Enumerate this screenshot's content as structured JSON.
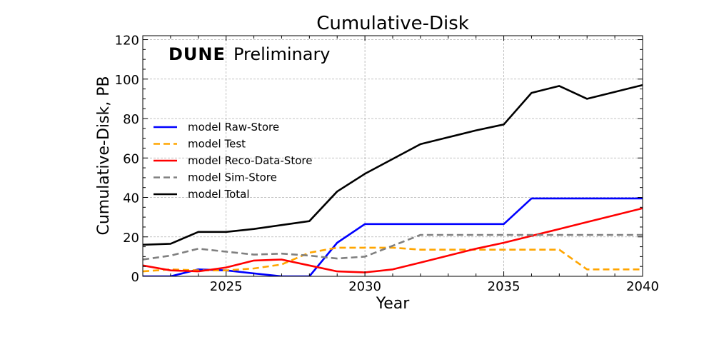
{
  "chart_data": {
    "type": "line",
    "title": "Cumulative-Disk",
    "xlabel": "Year",
    "ylabel": "Cumulative-Disk, PB",
    "annotation_bold": "DUNE",
    "annotation_text": "Preliminary",
    "xlim": [
      2022,
      2040
    ],
    "ylim": [
      0,
      122
    ],
    "xticks": [
      2025,
      2030,
      2035,
      2040
    ],
    "yticks": [
      0,
      20,
      40,
      60,
      80,
      100,
      120
    ],
    "grid": true,
    "legend_position": "left",
    "series": [
      {
        "name": "model Raw-Store",
        "color": "#0000ff",
        "dashed": false,
        "x": [
          2022,
          2023,
          2024,
          2025,
          2026,
          2027,
          2028,
          2029,
          2030,
          2031,
          2032,
          2033,
          2034,
          2035,
          2036,
          2037,
          2038,
          2039,
          2040
        ],
        "values": [
          0,
          0,
          3.5,
          3,
          1.5,
          0,
          0,
          17,
          26.5,
          26.5,
          26.5,
          26.5,
          26.5,
          26.5,
          39.5,
          39.5,
          39.5,
          39.5,
          39.5
        ]
      },
      {
        "name": "model Test",
        "color": "#ffa500",
        "dashed": true,
        "x": [
          2022,
          2023,
          2024,
          2025,
          2026,
          2027,
          2028,
          2029,
          2030,
          2031,
          2032,
          2033,
          2034,
          2035,
          2036,
          2037,
          2038,
          2039,
          2040
        ],
        "values": [
          2.5,
          3.5,
          3,
          3,
          4,
          6,
          12,
          14.5,
          14.5,
          14.5,
          13.5,
          13.5,
          13.5,
          13.5,
          13.5,
          13.5,
          3.5,
          3.5,
          3.5
        ]
      },
      {
        "name": "model Reco-Data-Store",
        "color": "#ff0000",
        "dashed": false,
        "x": [
          2022,
          2023,
          2024,
          2025,
          2026,
          2027,
          2028,
          2029,
          2030,
          2031,
          2032,
          2033,
          2034,
          2035,
          2036,
          2037,
          2038,
          2039,
          2040
        ],
        "values": [
          5.5,
          3,
          2.5,
          4.5,
          8,
          8.5,
          5.5,
          2.5,
          2,
          3.5,
          7,
          10.5,
          14,
          17,
          20.5,
          24,
          27.5,
          31,
          34.5
        ]
      },
      {
        "name": "model Sim-Store",
        "color": "#808080",
        "dashed": true,
        "x": [
          2022,
          2023,
          2024,
          2025,
          2026,
          2027,
          2028,
          2029,
          2030,
          2031,
          2032,
          2033,
          2034,
          2035,
          2036,
          2037,
          2038,
          2039,
          2040
        ],
        "values": [
          8.5,
          10.5,
          14,
          12.5,
          11,
          11.5,
          10.5,
          9,
          10,
          15.5,
          21,
          21,
          21,
          21,
          21,
          21,
          21,
          21,
          21
        ]
      },
      {
        "name": "model Total",
        "color": "#000000",
        "dashed": false,
        "x": [
          2022,
          2023,
          2024,
          2025,
          2026,
          2027,
          2028,
          2029,
          2030,
          2031,
          2032,
          2033,
          2034,
          2035,
          2036,
          2037,
          2038,
          2039,
          2040
        ],
        "values": [
          16,
          16.5,
          22.5,
          22.5,
          24,
          26,
          28,
          43,
          52,
          59.5,
          67,
          70.5,
          74,
          77,
          93,
          96.5,
          90,
          93.5,
          97
        ]
      }
    ]
  }
}
